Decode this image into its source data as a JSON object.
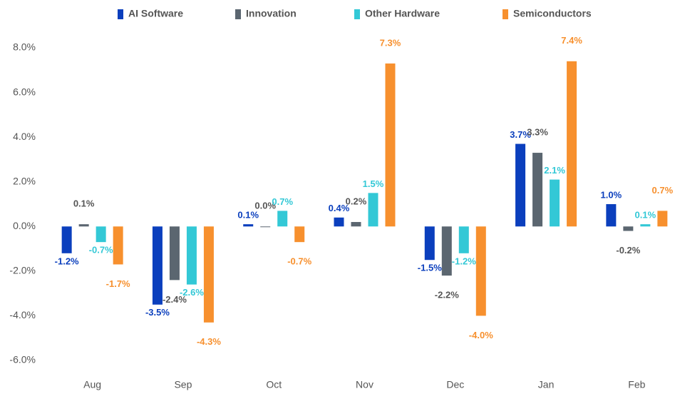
{
  "chart_data": {
    "type": "bar",
    "categories": [
      "Aug",
      "Sep",
      "Oct",
      "Nov",
      "Dec",
      "Jan",
      "Feb"
    ],
    "series": [
      {
        "name": "AI Software",
        "color": "#0b3fbd",
        "values": [
          -1.2,
          -3.5,
          0.1,
          0.4,
          -1.5,
          3.7,
          1.0
        ],
        "value_labels": [
          "-1.2%",
          "-3.5%",
          "0.1%",
          "0.4%",
          "-1.5%",
          "3.7%",
          "1.0%"
        ]
      },
      {
        "name": "Innovation",
        "color": "#5b6670",
        "values": [
          0.1,
          -2.4,
          0.0,
          0.2,
          -2.2,
          3.3,
          -0.2
        ],
        "value_labels": [
          "0.1%",
          "-2.4%",
          "0.0%",
          "0.2%",
          "-2.2%",
          "3.3%",
          "-0.2%"
        ]
      },
      {
        "name": "Other Hardware",
        "color": "#33c8d6",
        "values": [
          -0.7,
          -2.6,
          0.7,
          1.5,
          -1.2,
          2.1,
          0.1
        ],
        "value_labels": [
          "-0.7%",
          "-2.6%",
          "0.7%",
          "1.5%",
          "-1.2%",
          "2.1%",
          "0.1%"
        ]
      },
      {
        "name": "Semiconductors",
        "color": "#f7902e",
        "values": [
          -1.7,
          -4.3,
          -0.7,
          7.3,
          -4.0,
          7.4,
          0.7
        ],
        "value_labels": [
          "-1.7%",
          "-4.3%",
          "-0.7%",
          "7.3%",
          "-4.0%",
          "7.4%",
          "0.7%"
        ]
      }
    ],
    "ylim": [
      -6.5,
      8.5
    ],
    "yticks": [
      {
        "value": -6,
        "label": "-6.0%"
      },
      {
        "value": -4,
        "label": "-4.0%"
      },
      {
        "value": -2,
        "label": "-2.0%"
      },
      {
        "value": 0,
        "label": "0.0%"
      },
      {
        "value": 2,
        "label": "2.0%"
      },
      {
        "value": 4,
        "label": "4.0%"
      },
      {
        "value": 6,
        "label": "6.0%"
      },
      {
        "value": 8,
        "label": "8.0%"
      }
    ],
    "grid": false,
    "legend": "top"
  }
}
